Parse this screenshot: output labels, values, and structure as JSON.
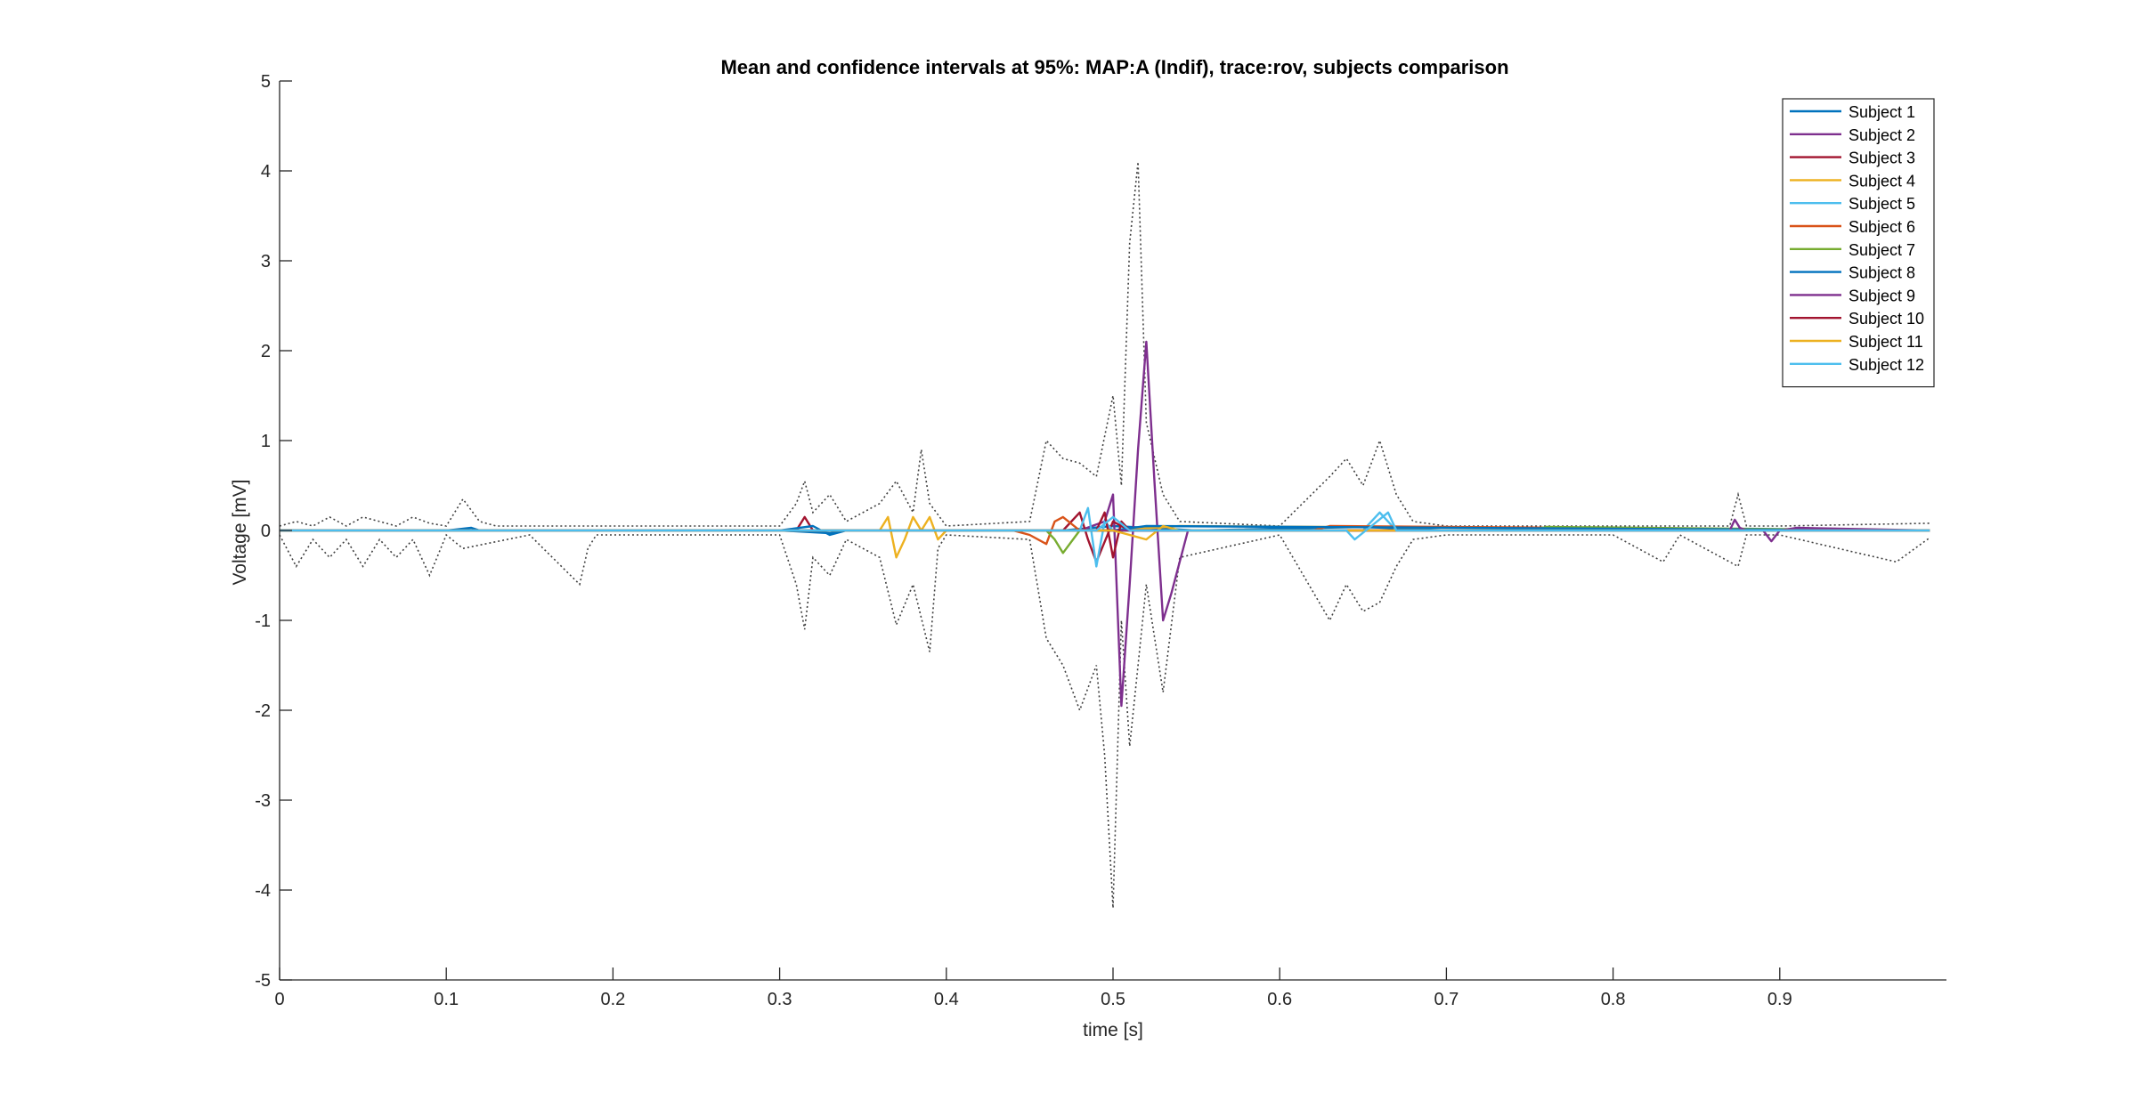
{
  "chart_data": {
    "type": "line",
    "title": "Mean and confidence intervals at 95%: MAP:A (Indif), trace:rov, subjects comparison",
    "xlabel": "time [s]",
    "ylabel": "Voltage [mV]",
    "xlim": [
      0,
      1.0
    ],
    "ylim": [
      -5,
      5
    ],
    "x_ticks": [
      0,
      0.1,
      0.2,
      0.3,
      0.4,
      0.5,
      0.6,
      0.7,
      0.8,
      0.9
    ],
    "x_tick_labels": [
      "0",
      "0.1",
      "0.2",
      "0.3",
      "0.4",
      "0.5",
      "0.6",
      "0.7",
      "0.8",
      "0.9"
    ],
    "y_ticks": [
      -5,
      -4,
      -3,
      -2,
      -1,
      0,
      1,
      2,
      3,
      4,
      5
    ],
    "y_tick_labels": [
      "-5",
      "-4",
      "-3",
      "-2",
      "-1",
      "0",
      "1",
      "2",
      "3",
      "4",
      "5"
    ],
    "grid": false,
    "legend_position": "top-right",
    "confidence_interval_style": "black dotted lines",
    "series": [
      {
        "name": "Subject 1",
        "color": "#0072BD",
        "x": [
          0,
          0.1,
          0.115,
          0.12,
          0.3,
          0.33,
          0.34,
          0.47,
          0.5,
          0.55,
          0.65,
          0.7,
          0.9,
          0.99
        ],
        "y": [
          0,
          0,
          0.03,
          0,
          0,
          -0.03,
          0,
          0,
          0.05,
          0,
          0.04,
          0,
          0,
          0
        ]
      },
      {
        "name": "Subject 2",
        "color": "#7E2F8E",
        "x": [
          0,
          0.48,
          0.495,
          0.5,
          0.505,
          0.51,
          0.515,
          0.52,
          0.525,
          0.53,
          0.535,
          0.545,
          0.56,
          0.99
        ],
        "y": [
          0,
          0,
          0.1,
          0.4,
          -1.95,
          -0.6,
          0.9,
          2.1,
          0.5,
          -1.0,
          -0.7,
          0,
          0,
          0
        ]
      },
      {
        "name": "Subject 3",
        "color": "#A2142F",
        "x": [
          0,
          0.31,
          0.315,
          0.32,
          0.47,
          0.48,
          0.485,
          0.49,
          0.5,
          0.51,
          0.55,
          0.99
        ],
        "y": [
          0,
          0,
          0.15,
          0,
          0,
          0.2,
          -0.1,
          -0.35,
          0.1,
          0,
          0,
          0
        ]
      },
      {
        "name": "Subject 4",
        "color": "#EDB120",
        "x": [
          0,
          0.36,
          0.365,
          0.37,
          0.375,
          0.38,
          0.385,
          0.39,
          0.395,
          0.4,
          0.5,
          0.54,
          0.99
        ],
        "y": [
          0,
          0,
          0.15,
          -0.3,
          -0.1,
          0.15,
          0,
          0.15,
          -0.1,
          0,
          0,
          0.05,
          0
        ]
      },
      {
        "name": "Subject 5",
        "color": "#4DBEEE",
        "x": [
          0,
          0.48,
          0.485,
          0.49,
          0.495,
          0.5,
          0.65,
          0.66,
          0.665,
          0.67,
          0.99
        ],
        "y": [
          0,
          0,
          0.25,
          -0.4,
          0.1,
          0,
          0,
          0.2,
          0.1,
          0,
          0
        ]
      },
      {
        "name": "Subject 6",
        "color": "#D95319",
        "x": [
          0,
          0.44,
          0.45,
          0.46,
          0.465,
          0.47,
          0.48,
          0.62,
          0.63,
          0.99
        ],
        "y": [
          0,
          0,
          -0.05,
          -0.15,
          0.1,
          0.15,
          0,
          0,
          0.05,
          0
        ]
      },
      {
        "name": "Subject 7",
        "color": "#77AC30",
        "x": [
          0,
          0.46,
          0.465,
          0.47,
          0.48,
          0.75,
          0.76,
          0.99
        ],
        "y": [
          0,
          0,
          -0.1,
          -0.25,
          0,
          0,
          0.04,
          0
        ]
      },
      {
        "name": "Subject 8",
        "color": "#0072BD",
        "x": [
          0,
          0.3,
          0.32,
          0.33,
          0.34,
          0.5,
          0.52,
          0.99
        ],
        "y": [
          0,
          0,
          0.05,
          -0.05,
          0,
          0,
          0.05,
          0
        ]
      },
      {
        "name": "Subject 9",
        "color": "#7E2F8E",
        "x": [
          0,
          0.87,
          0.873,
          0.876,
          0.88,
          0.89,
          0.895,
          0.9,
          0.91,
          0.99
        ],
        "y": [
          0,
          0,
          0.12,
          0.03,
          0,
          0,
          -0.12,
          0,
          0.03,
          0
        ]
      },
      {
        "name": "Subject 10",
        "color": "#A2142F",
        "x": [
          0,
          0.49,
          0.495,
          0.5,
          0.505,
          0.51,
          0.99
        ],
        "y": [
          0,
          0,
          0.2,
          -0.3,
          0.1,
          0,
          0
        ]
      },
      {
        "name": "Subject 11",
        "color": "#EDB120",
        "x": [
          0,
          0.5,
          0.52,
          0.53,
          0.54,
          0.99
        ],
        "y": [
          0,
          0,
          -0.1,
          0.05,
          0,
          0
        ]
      },
      {
        "name": "Subject 12",
        "color": "#4DBEEE",
        "x": [
          0,
          0.49,
          0.5,
          0.51,
          0.64,
          0.645,
          0.655,
          0.665,
          0.67,
          0.99
        ],
        "y": [
          0,
          0,
          0.15,
          0,
          0,
          -0.1,
          0.05,
          0.2,
          0,
          0
        ]
      }
    ],
    "confidence_bounds": [
      {
        "x": [
          0,
          0.01,
          0.02,
          0.03,
          0.04,
          0.05,
          0.06,
          0.07,
          0.08,
          0.09,
          0.1,
          0.11,
          0.12,
          0.13,
          0.2,
          0.3,
          0.31,
          0.315,
          0.32,
          0.33,
          0.34,
          0.36,
          0.37,
          0.38,
          0.385,
          0.39,
          0.4,
          0.45,
          0.46,
          0.47,
          0.48,
          0.49,
          0.5,
          0.505,
          0.51,
          0.515,
          0.52,
          0.53,
          0.54,
          0.6,
          0.63,
          0.64,
          0.65,
          0.66,
          0.67,
          0.68,
          0.7,
          0.8,
          0.87,
          0.875,
          0.88,
          0.9,
          0.99
        ],
        "y": [
          0.05,
          0.1,
          0.05,
          0.15,
          0.05,
          0.15,
          0.1,
          0.05,
          0.15,
          0.08,
          0.05,
          0.35,
          0.1,
          0.05,
          0.05,
          0.05,
          0.3,
          0.55,
          0.2,
          0.4,
          0.1,
          0.3,
          0.55,
          0.2,
          0.9,
          0.3,
          0.05,
          0.1,
          1.0,
          0.8,
          0.75,
          0.6,
          1.5,
          0.5,
          3.2,
          4.1,
          1.2,
          0.4,
          0.1,
          0.05,
          0.6,
          0.8,
          0.5,
          1.0,
          0.4,
          0.1,
          0.05,
          0.05,
          0.05,
          0.4,
          0.05,
          0.05,
          0.08
        ]
      },
      {
        "x": [
          0,
          0.01,
          0.02,
          0.03,
          0.04,
          0.05,
          0.06,
          0.07,
          0.08,
          0.09,
          0.1,
          0.11,
          0.15,
          0.18,
          0.185,
          0.19,
          0.2,
          0.3,
          0.31,
          0.315,
          0.32,
          0.33,
          0.34,
          0.36,
          0.37,
          0.38,
          0.39,
          0.395,
          0.4,
          0.45,
          0.46,
          0.47,
          0.48,
          0.49,
          0.495,
          0.5,
          0.505,
          0.51,
          0.515,
          0.52,
          0.53,
          0.54,
          0.6,
          0.63,
          0.64,
          0.65,
          0.66,
          0.67,
          0.68,
          0.7,
          0.8,
          0.83,
          0.84,
          0.875,
          0.88,
          0.9,
          0.97,
          0.99
        ],
        "y": [
          -0.05,
          -0.4,
          -0.1,
          -0.3,
          -0.1,
          -0.4,
          -0.1,
          -0.3,
          -0.1,
          -0.5,
          -0.05,
          -0.2,
          -0.05,
          -0.6,
          -0.2,
          -0.05,
          -0.05,
          -0.05,
          -0.6,
          -1.1,
          -0.3,
          -0.5,
          -0.1,
          -0.3,
          -1.05,
          -0.6,
          -1.35,
          -0.2,
          -0.05,
          -0.1,
          -1.2,
          -1.5,
          -2.0,
          -1.5,
          -2.5,
          -4.2,
          -1.0,
          -2.4,
          -1.5,
          -0.6,
          -1.8,
          -0.3,
          -0.05,
          -1.0,
          -0.6,
          -0.9,
          -0.8,
          -0.4,
          -0.1,
          -0.05,
          -0.05,
          -0.35,
          -0.05,
          -0.4,
          -0.05,
          -0.05,
          -0.35,
          -0.08
        ]
      }
    ]
  }
}
